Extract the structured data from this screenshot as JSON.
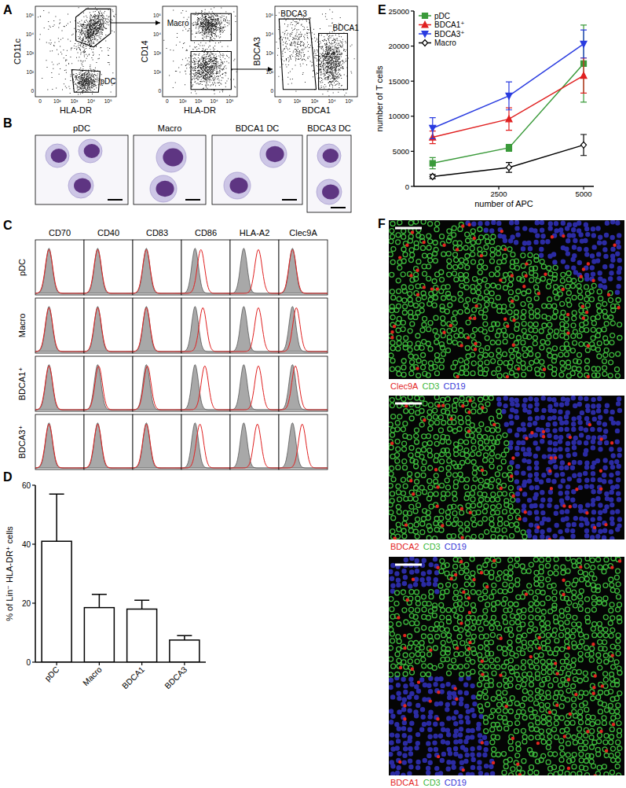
{
  "panel_labels": [
    "A",
    "B",
    "C",
    "D",
    "E",
    "F"
  ],
  "panel_a": {
    "ticks": [
      "0",
      "10²",
      "10³",
      "10⁴",
      "10⁵"
    ],
    "plots": [
      {
        "x_label": "HLA-DR",
        "y_label": "CD11c",
        "gates": [
          "pDC"
        ]
      },
      {
        "x_label": "HLA-DR",
        "y_label": "CD14",
        "gates": [
          "Macro"
        ]
      },
      {
        "x_label": "BDCA1",
        "y_label": "BDCA3",
        "gates": [
          "BDCA3",
          "BDCA1"
        ]
      }
    ]
  },
  "panel_b": {
    "cells": [
      "pDC",
      "Macro",
      "BDCA1 DC",
      "BDCA3 DC"
    ]
  },
  "panel_c": {
    "columns": [
      "CD70",
      "CD40",
      "CD83",
      "CD86",
      "HLA-A2",
      "Clec9A"
    ],
    "rows": [
      "pDC",
      "Macro",
      "BDCA1⁺",
      "BDCA3⁺"
    ],
    "expression_shift": [
      [
        0,
        0,
        0,
        0.6,
        1.5,
        0
      ],
      [
        0,
        0,
        0,
        0.8,
        1.5,
        0.4
      ],
      [
        0,
        0.1,
        0.1,
        1.0,
        1.5,
        0.3
      ],
      [
        0,
        0,
        0,
        0.5,
        1.4,
        1.0
      ]
    ]
  },
  "panel_f": {
    "images": [
      {
        "stains": [
          {
            "text": "Clec9A",
            "color": "#e3261f"
          },
          {
            "text": "CD3",
            "color": "#3cb83c"
          },
          {
            "text": "CD19",
            "color": "#3838d8"
          }
        ]
      },
      {
        "stains": [
          {
            "text": "BDCA2",
            "color": "#e3261f"
          },
          {
            "text": "CD3",
            "color": "#3cb83c"
          },
          {
            "text": "CD19",
            "color": "#3838d8"
          }
        ]
      },
      {
        "stains": [
          {
            "text": "BDCA1",
            "color": "#e3261f"
          },
          {
            "text": "CD3",
            "color": "#3cb83c"
          },
          {
            "text": "CD19",
            "color": "#3838d8"
          }
        ]
      }
    ]
  },
  "chart_data": [
    {
      "type": "bar",
      "y_label": "% of Lin⁻ HLA-DR⁺ cells",
      "categories": [
        "pDC",
        "Macro",
        "BDCA1",
        "BDCA3"
      ],
      "values": [
        41,
        18.5,
        18,
        7.5
      ],
      "errors": [
        16,
        4.5,
        3,
        1.5
      ],
      "color": "#ffffff",
      "ylim": [
        0,
        60
      ],
      "yticks": [
        0,
        20,
        40,
        60
      ],
      "grid": false
    },
    {
      "type": "line",
      "x_label": "number of APC",
      "y_label": "number of T cells",
      "x": [
        550,
        2800,
        5000
      ],
      "series": [
        {
          "name": "pDC",
          "color": "#3a9a3a",
          "marker": "square",
          "values": [
            3300,
            5500,
            17500
          ],
          "errors": [
            800,
            500,
            5500
          ]
        },
        {
          "name": "BDCA1⁺",
          "color": "#e02020",
          "marker": "triangle-up",
          "values": [
            7000,
            9600,
            15800
          ],
          "errors": [
            900,
            1600,
            2500
          ]
        },
        {
          "name": "BDCA3⁺",
          "color": "#2a3ce0",
          "marker": "triangle-down",
          "values": [
            8300,
            12900,
            20300
          ],
          "errors": [
            1500,
            2000,
            2000
          ]
        },
        {
          "name": "Macro",
          "color": "#000000",
          "marker": "diamond-open",
          "values": [
            1400,
            2700,
            5900
          ],
          "errors": [
            300,
            700,
            1500
          ]
        }
      ],
      "xlim": [
        0,
        5300
      ],
      "xticks": [
        2500,
        5000
      ],
      "ylim": [
        0,
        25000
      ],
      "yticks": [
        0,
        5000,
        10000,
        15000,
        20000,
        25000
      ],
      "grid": false,
      "legend": "upper left"
    }
  ]
}
